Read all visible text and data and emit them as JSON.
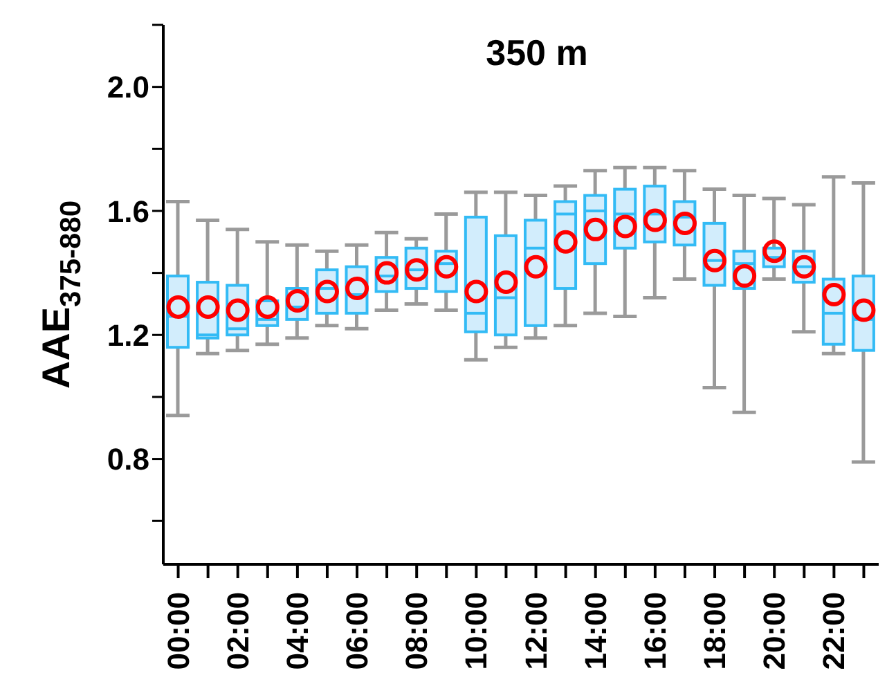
{
  "chart_data": {
    "type": "box",
    "title": "350 m",
    "ylabel": "AAE$_{375-880}$",
    "categories": [
      "00:00",
      null,
      "02:00",
      null,
      "04:00",
      null,
      "06:00",
      null,
      "08:00",
      null,
      "10:00",
      null,
      "12:00",
      null,
      "14:00",
      null,
      "16:00",
      null,
      "18:00",
      null,
      "20:00",
      null,
      "22:00",
      null
    ],
    "ylim": [
      0.46,
      2.2
    ],
    "yticks": [
      {
        "value": 0.6,
        "label": null
      },
      0.8,
      {
        "value": 1.0,
        "label": null
      },
      1.2,
      {
        "value": 1.4,
        "label": null
      },
      1.6,
      {
        "value": 1.8,
        "label": null
      },
      {
        "value": 2.0,
        "label": "2.0"
      },
      {
        "value": 2.2,
        "label": null
      }
    ],
    "grid": false,
    "legend": false,
    "marker": "circle",
    "series": [
      {
        "color": "#33bbf5",
        "boxes": [
          {
            "low": 0.94,
            "q1": 1.16,
            "median": 1.26,
            "q3": 1.39,
            "high": 1.63,
            "mean": 1.29
          },
          {
            "low": 1.14,
            "q1": 1.19,
            "median": 1.2,
            "q3": 1.37,
            "high": 1.57,
            "mean": 1.29
          },
          {
            "low": 1.15,
            "q1": 1.2,
            "median": 1.22,
            "q3": 1.36,
            "high": 1.54,
            "mean": 1.28
          },
          {
            "low": 1.17,
            "q1": 1.23,
            "median": 1.25,
            "q3": 1.31,
            "high": 1.5,
            "mean": 1.29
          },
          {
            "low": 1.19,
            "q1": 1.25,
            "median": 1.29,
            "q3": 1.35,
            "high": 1.49,
            "mean": 1.31
          },
          {
            "low": 1.23,
            "q1": 1.27,
            "median": 1.35,
            "q3": 1.41,
            "high": 1.47,
            "mean": 1.34
          },
          {
            "low": 1.22,
            "q1": 1.27,
            "median": 1.33,
            "q3": 1.42,
            "high": 1.49,
            "mean": 1.35
          },
          {
            "low": 1.28,
            "q1": 1.34,
            "median": 1.39,
            "q3": 1.45,
            "high": 1.53,
            "mean": 1.4
          },
          {
            "low": 1.3,
            "q1": 1.35,
            "median": 1.41,
            "q3": 1.48,
            "high": 1.51,
            "mean": 1.41
          },
          {
            "low": 1.28,
            "q1": 1.34,
            "median": 1.43,
            "q3": 1.47,
            "high": 1.59,
            "mean": 1.42
          },
          {
            "low": 1.12,
            "q1": 1.21,
            "median": 1.27,
            "q3": 1.58,
            "high": 1.66,
            "mean": 1.34
          },
          {
            "low": 1.16,
            "q1": 1.2,
            "median": 1.32,
            "q3": 1.52,
            "high": 1.66,
            "mean": 1.37
          },
          {
            "low": 1.19,
            "q1": 1.23,
            "median": 1.48,
            "q3": 1.57,
            "high": 1.65,
            "mean": 1.42
          },
          {
            "low": 1.23,
            "q1": 1.35,
            "median": 1.59,
            "q3": 1.63,
            "high": 1.68,
            "mean": 1.5
          },
          {
            "low": 1.27,
            "q1": 1.43,
            "median": 1.6,
            "q3": 1.65,
            "high": 1.73,
            "mean": 1.54
          },
          {
            "low": 1.26,
            "q1": 1.48,
            "median": 1.59,
            "q3": 1.67,
            "high": 1.74,
            "mean": 1.55
          },
          {
            "low": 1.32,
            "q1": 1.5,
            "median": 1.59,
            "q3": 1.68,
            "high": 1.74,
            "mean": 1.57
          },
          {
            "low": 1.38,
            "q1": 1.49,
            "median": 1.58,
            "q3": 1.63,
            "high": 1.73,
            "mean": 1.56
          },
          {
            "low": 1.03,
            "q1": 1.36,
            "median": 1.44,
            "q3": 1.56,
            "high": 1.67,
            "mean": 1.44
          },
          {
            "low": 0.95,
            "q1": 1.35,
            "median": 1.43,
            "q3": 1.47,
            "high": 1.65,
            "mean": 1.39
          },
          {
            "low": 1.38,
            "q1": 1.42,
            "median": 1.45,
            "q3": 1.48,
            "high": 1.64,
            "mean": 1.47
          },
          {
            "low": 1.21,
            "q1": 1.37,
            "median": 1.42,
            "q3": 1.47,
            "high": 1.62,
            "mean": 1.42
          },
          {
            "low": 1.14,
            "q1": 1.17,
            "median": 1.27,
            "q3": 1.38,
            "high": 1.71,
            "mean": 1.33
          },
          {
            "low": 0.79,
            "q1": 1.15,
            "median": 1.25,
            "q3": 1.39,
            "high": 1.69,
            "mean": 1.28
          }
        ]
      }
    ]
  }
}
